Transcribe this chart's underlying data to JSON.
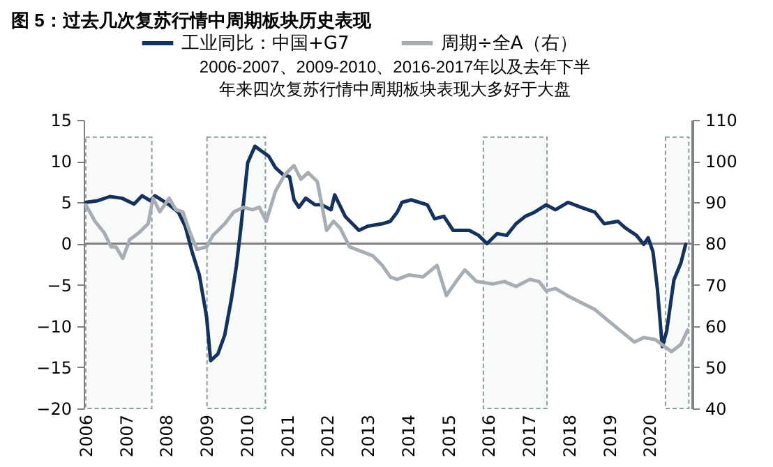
{
  "chart_data": {
    "type": "line",
    "title": "图 5：过去几次复苏行情中周期板块历史表现",
    "annotations": [
      "2006-2007、2009-2010、2016-2017年以及去年下半年来四次复苏行情中周期板块表现大多好于大盘"
    ],
    "xlim": [
      2005.95,
      2021.05
    ],
    "xticks": [
      2006,
      2007,
      2008,
      2009,
      2010,
      2011,
      2012,
      2013,
      2014,
      2015,
      2016,
      2017,
      2018,
      2019,
      2020
    ],
    "ylim": [
      -20,
      15
    ],
    "yticks": [
      -20,
      -15,
      -10,
      -5,
      0,
      5,
      10,
      15
    ],
    "y2lim": [
      40,
      110
    ],
    "y2ticks": [
      40,
      50,
      60,
      70,
      80,
      90,
      100,
      110
    ],
    "legend": "top",
    "ref_lines": [
      {
        "axis": "y",
        "value": 0,
        "color": "#808080"
      }
    ],
    "bands": [
      {
        "axis": "x",
        "from": 2006.0,
        "to": 2007.64,
        "color": "#8a9aa0"
      },
      {
        "axis": "x",
        "from": 2009.01,
        "to": 2010.46,
        "color": "#8a9aa0"
      },
      {
        "axis": "x",
        "from": 2015.87,
        "to": 2017.45,
        "color": "#8a9aa0"
      },
      {
        "axis": "x",
        "from": 2020.39,
        "to": 2020.97,
        "color": "#8a9aa0"
      }
    ],
    "series": [
      {
        "name": "工业同比：中国+G7",
        "color": "#14325c",
        "x": [
          2006.0,
          2006.3,
          2006.6,
          2006.9,
          2007.2,
          2007.4,
          2007.6,
          2007.72,
          2008.07,
          2008.3,
          2008.47,
          2008.64,
          2008.82,
          2009.0,
          2009.1,
          2009.28,
          2009.45,
          2009.62,
          2009.74,
          2009.85,
          2010.02,
          2010.2,
          2010.37,
          2010.54,
          2010.71,
          2010.89,
          2011.06,
          2011.17,
          2011.29,
          2011.46,
          2011.69,
          2011.86,
          2012.09,
          2012.18,
          2012.44,
          2012.78,
          2013.0,
          2013.36,
          2013.56,
          2013.73,
          2013.85,
          2014.08,
          2014.48,
          2014.66,
          2014.89,
          2015.12,
          2015.52,
          2015.75,
          2015.96,
          2016.21,
          2016.45,
          2016.68,
          2016.91,
          2017.14,
          2017.43,
          2017.66,
          2017.97,
          2018.29,
          2018.64,
          2018.87,
          2019.21,
          2019.39,
          2019.67,
          2019.85,
          2019.96,
          2020.08,
          2020.19,
          2020.31,
          2020.42,
          2020.6,
          2020.77,
          2020.89
        ],
        "values": [
          5,
          5.2,
          5.7,
          5.5,
          4.8,
          5.8,
          5.2,
          5.8,
          4.7,
          3.8,
          2.1,
          -1,
          -3.8,
          -8.9,
          -14.2,
          -13.4,
          -11.1,
          -6.6,
          -2.7,
          1.9,
          9.8,
          11.8,
          11.2,
          10.6,
          9.2,
          8.4,
          8.1,
          5.3,
          4.4,
          5.5,
          4.7,
          4.7,
          4.1,
          5.9,
          3.3,
          1.6,
          2.1,
          2.4,
          2.7,
          3.8,
          5.0,
          5.3,
          4.7,
          3.0,
          3.3,
          1.6,
          1.6,
          1.0,
          0,
          1.2,
          1.0,
          2.4,
          3.3,
          3.8,
          4.7,
          4.1,
          5.0,
          4.4,
          3.8,
          2.4,
          2.7,
          1.9,
          1.0,
          -0.1,
          0.7,
          -1.0,
          -5.5,
          -12.5,
          -10.6,
          -4.4,
          -2.4,
          -0.1
        ]
      },
      {
        "name": "周期÷全A（右）",
        "color": "#a6adb4",
        "axis": "y2",
        "x": [
          2006.0,
          2006.23,
          2006.46,
          2006.63,
          2006.75,
          2006.92,
          2007.09,
          2007.32,
          2007.55,
          2007.67,
          2007.84,
          2008.07,
          2008.24,
          2008.41,
          2008.59,
          2008.76,
          2009.0,
          2009.16,
          2009.45,
          2009.68,
          2009.91,
          2010.14,
          2010.31,
          2010.48,
          2010.71,
          2010.94,
          2011.17,
          2011.34,
          2011.52,
          2011.75,
          2011.98,
          2012.15,
          2012.32,
          2012.55,
          2012.84,
          2013.13,
          2013.36,
          2013.56,
          2013.73,
          2014.02,
          2014.37,
          2014.72,
          2014.95,
          2015.23,
          2015.41,
          2015.7,
          2016.1,
          2016.39,
          2016.68,
          2017.02,
          2017.25,
          2017.43,
          2017.66,
          2017.95,
          2018.29,
          2018.64,
          2018.98,
          2019.33,
          2019.62,
          2019.85,
          2020.14,
          2020.37,
          2020.54,
          2020.77,
          2020.94
        ],
        "values": [
          89.4,
          85.4,
          82.6,
          79.2,
          79.2,
          76.4,
          80.9,
          82.6,
          84.8,
          91.0,
          87.7,
          91.0,
          88.2,
          87.7,
          82.6,
          78.6,
          79.2,
          82.0,
          84.8,
          87.7,
          88.8,
          88.2,
          88.8,
          85.4,
          92.7,
          96.7,
          98.9,
          95.6,
          97.2,
          95.0,
          83.2,
          85.4,
          83.7,
          79.2,
          78.1,
          77.0,
          74.7,
          71.9,
          71.3,
          72.4,
          71.9,
          74.7,
          67.4,
          71.3,
          73.6,
          70.8,
          70.2,
          70.8,
          69.6,
          71.3,
          70.8,
          68.5,
          69.1,
          67.4,
          65.7,
          64.0,
          61.2,
          58.4,
          56.1,
          57.2,
          56.7,
          55.0,
          53.8,
          55.5,
          59.0
        ]
      }
    ]
  }
}
